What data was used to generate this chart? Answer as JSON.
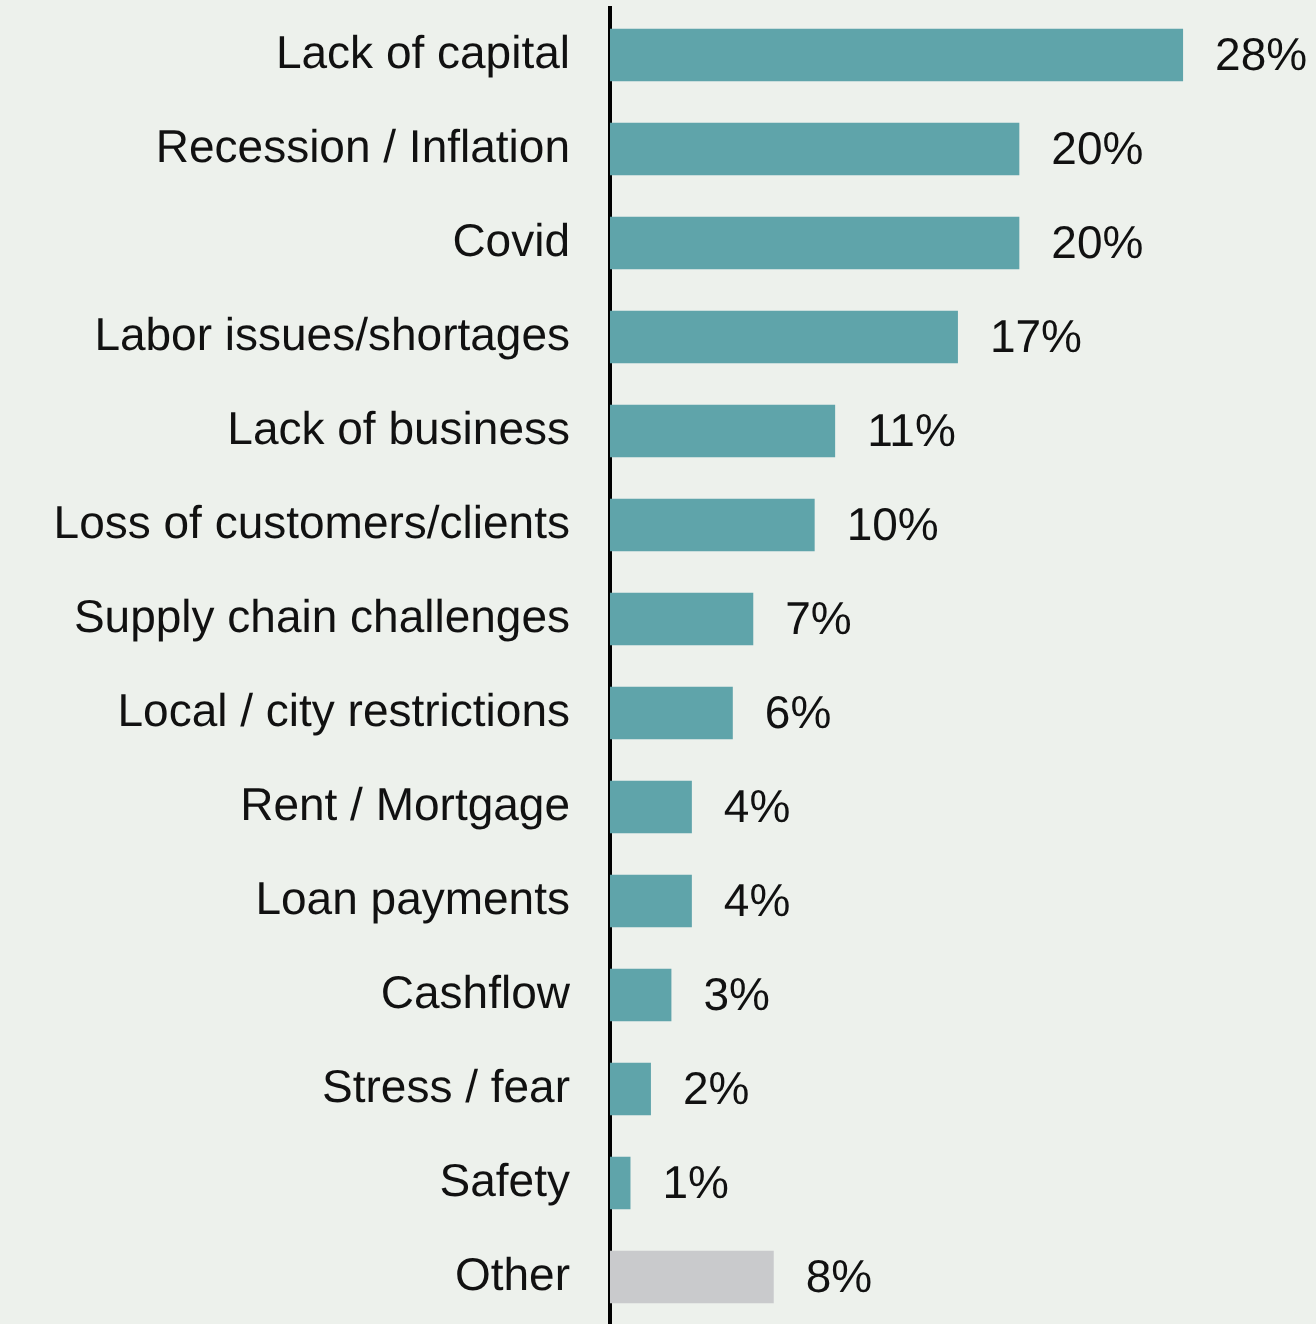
{
  "chart_data": {
    "type": "bar",
    "orientation": "horizontal",
    "categories": [
      "Lack of capital",
      "Recession / Inflation",
      "Covid",
      "Labor issues/shortages",
      "Lack of business",
      "Loss of customers/clients",
      "Supply chain challenges",
      "Local / city restrictions",
      "Rent / Mortgage",
      "Loan payments",
      "Cashflow",
      "Stress / fear",
      "Safety",
      "Other"
    ],
    "values": [
      28,
      20,
      20,
      17,
      11,
      10,
      7,
      6,
      4,
      4,
      3,
      2,
      1,
      8
    ],
    "value_labels": [
      "28%",
      "20%",
      "20%",
      "17%",
      "11%",
      "10%",
      "7%",
      "6%",
      "4%",
      "4%",
      "3%",
      "2%",
      "1%",
      "8%"
    ],
    "colors": [
      "#5fa4aa",
      "#5fa4aa",
      "#5fa4aa",
      "#5fa4aa",
      "#5fa4aa",
      "#5fa4aa",
      "#5fa4aa",
      "#5fa4aa",
      "#5fa4aa",
      "#5fa4aa",
      "#5fa4aa",
      "#5fa4aa",
      "#5fa4aa",
      "#c9cacc"
    ]
  }
}
